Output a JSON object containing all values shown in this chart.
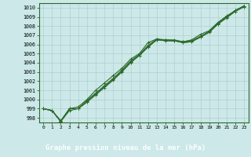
{
  "x": [
    0,
    1,
    2,
    3,
    4,
    5,
    6,
    7,
    8,
    9,
    10,
    11,
    12,
    13,
    14,
    15,
    16,
    17,
    18,
    19,
    20,
    21,
    22,
    23
  ],
  "line1": [
    999.0,
    998.8,
    997.6,
    999.0,
    999.2,
    1000.0,
    1001.0,
    1001.8,
    1002.6,
    1003.4,
    1004.4,
    1005.0,
    1006.2,
    1006.6,
    1006.4,
    1006.4,
    1006.3,
    1006.5,
    1007.1,
    1007.5,
    1008.4,
    1009.1,
    1009.7,
    1010.2
  ],
  "line2": [
    999.0,
    998.8,
    997.7,
    999.0,
    999.0,
    999.9,
    1000.7,
    1001.5,
    1002.3,
    1003.2,
    1004.2,
    1004.9,
    1005.9,
    1006.6,
    1006.5,
    1006.5,
    1006.3,
    1006.4,
    1006.9,
    1007.4,
    1008.3,
    1009.0,
    1009.7,
    1010.2
  ],
  "line3": [
    999.0,
    998.8,
    997.6,
    999.0,
    999.0,
    999.8,
    1000.6,
    1001.4,
    1002.2,
    1003.1,
    1004.1,
    1004.8,
    1005.8,
    1006.5,
    1006.5,
    1006.4,
    1006.2,
    1006.3,
    1006.8,
    1007.4,
    1008.3,
    1009.0,
    1009.7,
    1010.2
  ],
  "line4": [
    999.0,
    998.8,
    997.6,
    998.8,
    999.0,
    999.7,
    1000.5,
    1001.3,
    1002.1,
    1003.0,
    1004.0,
    1004.8,
    1005.7,
    1006.5,
    1006.4,
    1006.4,
    1006.2,
    1006.3,
    1006.8,
    1007.3,
    1008.2,
    1008.9,
    1009.6,
    1010.1
  ],
  "line_color": "#2d6a2d",
  "bg_color": "#cce8e8",
  "grid_color": "#b0d0d0",
  "bottom_bar_color": "#2d6a2d",
  "bottom_text_color": "#ffffff",
  "title": "Graphe pression niveau de la mer (hPa)",
  "ylim": [
    997.5,
    1010.5
  ],
  "xlim_min": -0.5,
  "xlim_max": 23.5,
  "yticks": [
    998,
    999,
    1000,
    1001,
    1002,
    1003,
    1004,
    1005,
    1006,
    1007,
    1008,
    1009,
    1010
  ],
  "xticks": [
    0,
    1,
    2,
    3,
    4,
    5,
    6,
    7,
    8,
    9,
    10,
    11,
    12,
    13,
    14,
    15,
    16,
    17,
    18,
    19,
    20,
    21,
    22,
    23
  ],
  "marker": "+",
  "markersize": 3,
  "linewidth": 0.8,
  "title_fontsize": 6.5,
  "tick_fontsize": 4.8,
  "xtick_fontsize": 4.5
}
